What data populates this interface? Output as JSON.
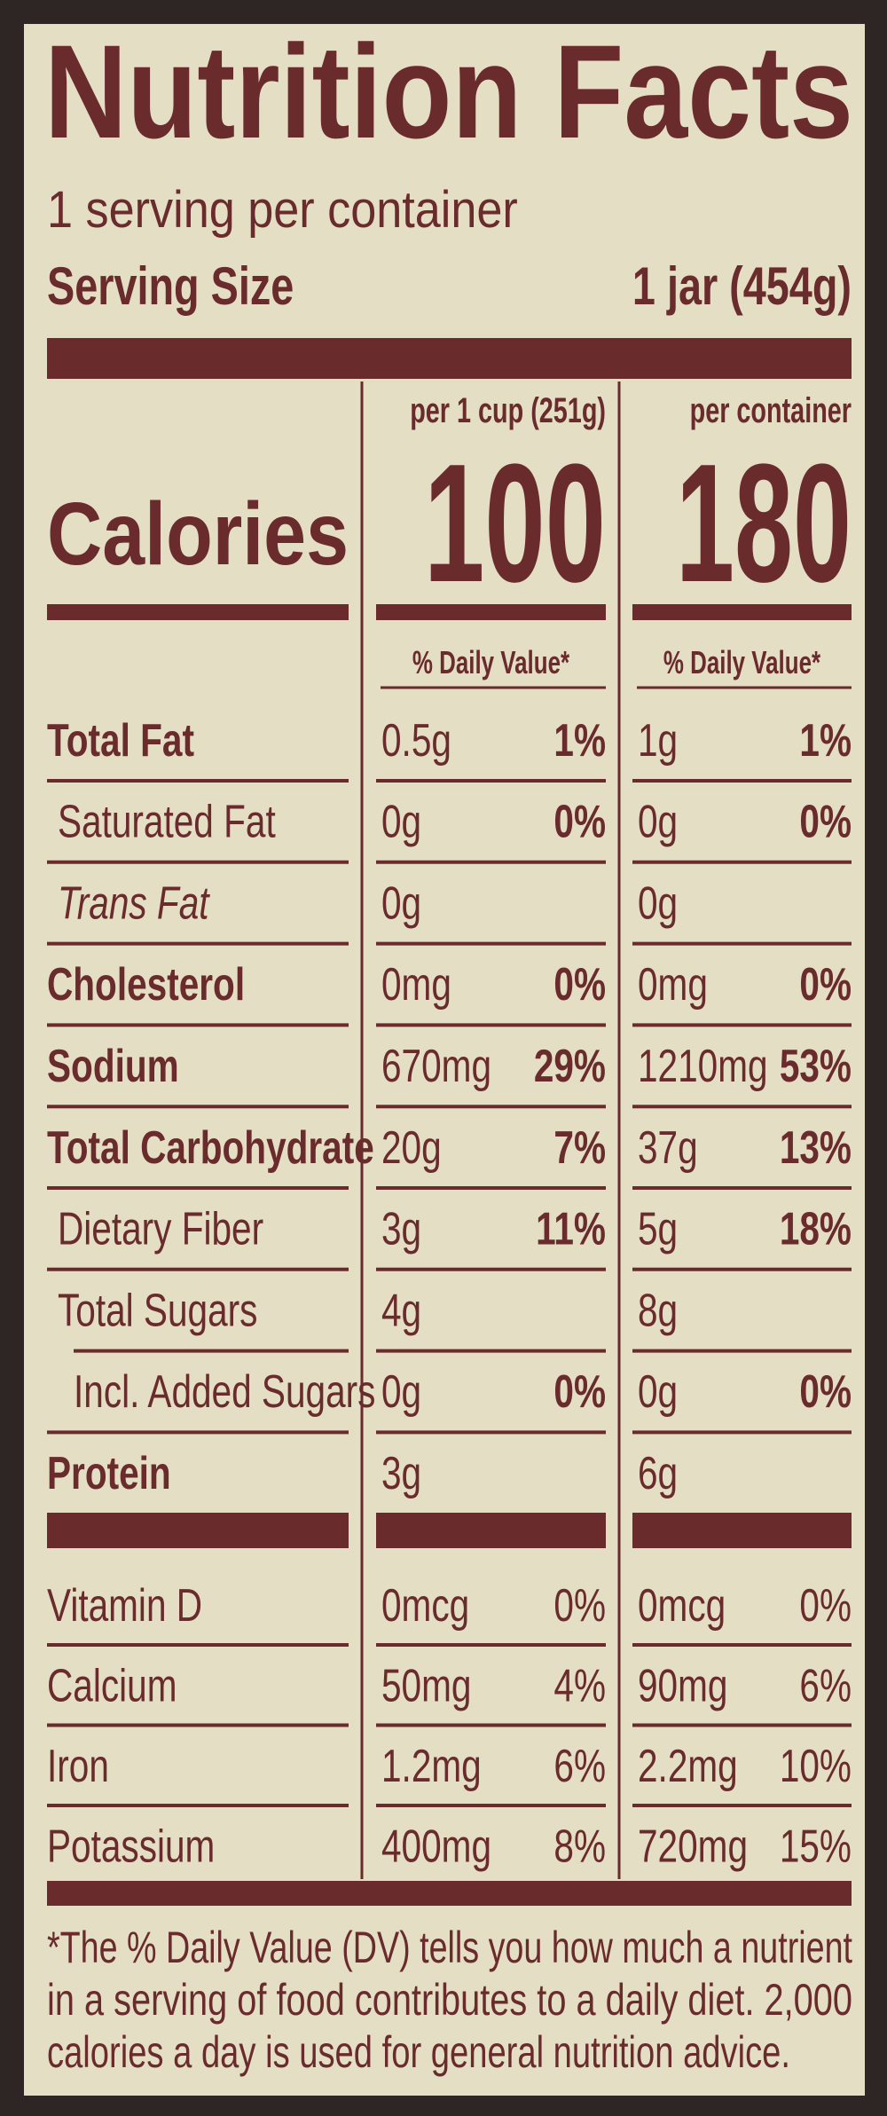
{
  "title": "Nutrition Facts",
  "servings": "1 serving per container",
  "serving_size": {
    "label": "Serving Size",
    "value": "1 jar (454g)"
  },
  "calories_label": "Calories",
  "columns": [
    {
      "header": "per 1 cup (251g)",
      "calories": "100"
    },
    {
      "header": "per container",
      "calories": "180"
    }
  ],
  "daily_value_header": "% Daily Value*",
  "nutrients": [
    {
      "name": "Total Fat",
      "values": [
        [
          "0.5g",
          "1%"
        ],
        [
          "1g",
          "1%"
        ]
      ]
    },
    {
      "name": "Saturated Fat",
      "values": [
        [
          "0g",
          "0%"
        ],
        [
          "0g",
          "0%"
        ]
      ]
    },
    {
      "name": "Trans Fat",
      "values": [
        [
          "0g",
          null
        ],
        [
          "0g",
          null
        ]
      ]
    },
    {
      "name": "Cholesterol",
      "values": [
        [
          "0mg",
          "0%"
        ],
        [
          "0mg",
          "0%"
        ]
      ]
    },
    {
      "name": "Sodium",
      "values": [
        [
          "670mg",
          "29%"
        ],
        [
          "1210mg",
          "53%"
        ]
      ]
    },
    {
      "name": "Total Carbohydrate",
      "values": [
        [
          "20g",
          "7%"
        ],
        [
          "37g",
          "13%"
        ]
      ]
    },
    {
      "name": "Dietary Fiber",
      "values": [
        [
          "3g",
          "11%"
        ],
        [
          "5g",
          "18%"
        ]
      ]
    },
    {
      "name": "Total Sugars",
      "values": [
        [
          "4g",
          null
        ],
        [
          "8g",
          null
        ]
      ]
    },
    {
      "name": "Incl. Added Sugars",
      "values": [
        [
          "0g",
          "0%"
        ],
        [
          "0g",
          "0%"
        ]
      ]
    },
    {
      "name": "Protein",
      "values": [
        [
          "3g",
          null
        ],
        [
          "6g",
          null
        ]
      ]
    }
  ],
  "vitamins": [
    {
      "name": "Vitamin D",
      "values": [
        [
          "0mcg",
          "0%"
        ],
        [
          "0mcg",
          "0%"
        ]
      ]
    },
    {
      "name": "Calcium",
      "values": [
        [
          "50mg",
          "4%"
        ],
        [
          "90mg",
          "6%"
        ]
      ]
    },
    {
      "name": "Iron",
      "values": [
        [
          "1.2mg",
          "6%"
        ],
        [
          "2.2mg",
          "10%"
        ]
      ]
    },
    {
      "name": "Potassium",
      "values": [
        [
          "400mg",
          "8%"
        ],
        [
          "720mg",
          "15%"
        ]
      ]
    }
  ],
  "footnote": [
    "*The % Daily Value (DV) tells you how much a nutrient",
    "in a serving of food contributes to a daily diet. 2,000",
    "calories a day is used for general nutrition advice."
  ]
}
